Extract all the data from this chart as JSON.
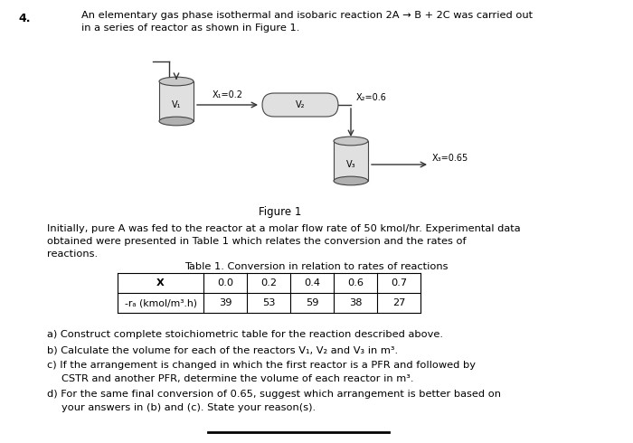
{
  "background_color": "#ffffff",
  "page_number": "4.",
  "title_line1": "An elementary gas phase isothermal and isobaric reaction 2A → B + 2C was carried out",
  "title_line2": "in a series of reactor as shown in Figure 1.",
  "figure_label": "Figure 1",
  "para_line1": "Initially, pure A was fed to the reactor at a molar flow rate of 50 kmol/hr. Experimental data",
  "para_line2": "obtained were presented in Table 1 which relates the conversion and the rates of",
  "para_line3": "reactions.",
  "table_title": "Table 1. Conversion in relation to rates of reactions",
  "table_headers": [
    "X",
    "0.0",
    "0.2",
    "0.4",
    "0.6",
    "0.7"
  ],
  "table_row_label": "-rₐ (kmol/m³.h)",
  "table_values": [
    "39",
    "53",
    "59",
    "38",
    "27"
  ],
  "q_a": "a) Construct complete stoichiometric table for the reaction described above.",
  "q_b": "b) Calculate the volume for each of the reactors V₁, V₂ and V₃ in m³.",
  "q_c1": "c) If the arrangement is changed in which the first reactor is a PFR and followed by",
  "q_c2": "   CSTR and another PFR, determine the volume of each reactor in m³.",
  "q_d1": "d) For the same final conversion of 0.65, suggest which arrangement is better based on",
  "q_d2": "   your answers in (b) and (c). State your reason(s).",
  "reactor1_label": "V₁",
  "reactor2_label": "V₂",
  "reactor3_label": "V₃",
  "x1_label": "X₁=0.2",
  "x2_label": "X₂=0.6",
  "x3_label": "X₃=0.65",
  "gray_body": "#e0e0e0",
  "gray_top": "#c8c8c8",
  "gray_dark": "#b0b0b0",
  "edge_color": "#444444",
  "line_color": "#333333"
}
